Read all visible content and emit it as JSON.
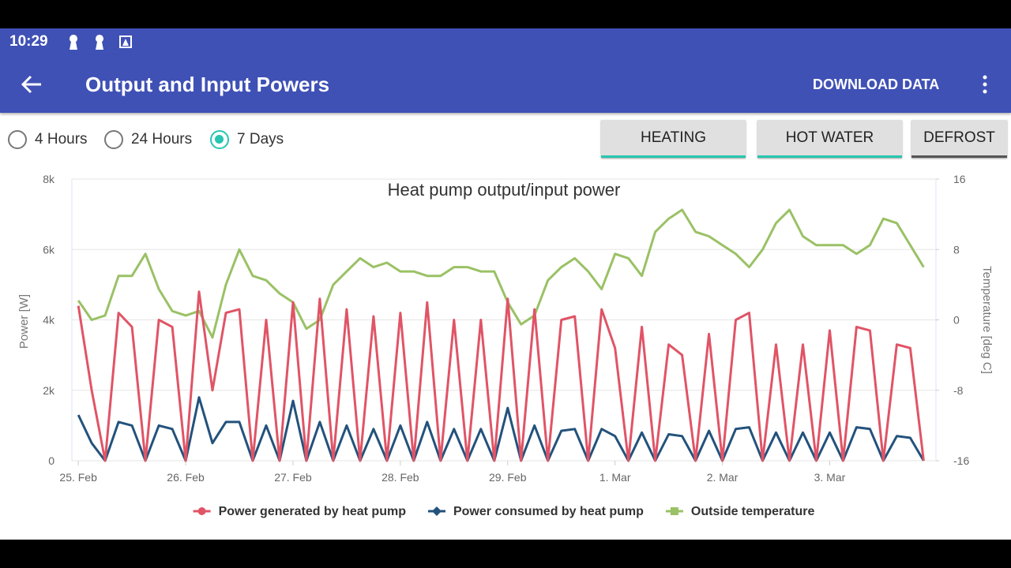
{
  "status_bar": {
    "time": "10:29"
  },
  "app_bar": {
    "title": "Output and Input Powers",
    "action": "DOWNLOAD DATA"
  },
  "range_options": [
    {
      "label": "4 Hours",
      "selected": false
    },
    {
      "label": "24 Hours",
      "selected": false
    },
    {
      "label": "7 Days",
      "selected": true
    }
  ],
  "tabs": [
    "HEATING",
    "HOT WATER",
    "DEFROST"
  ],
  "chart_data": {
    "type": "line",
    "title": "Heat pump output/input power",
    "y_label": "Power [W]",
    "y2_label": "Temperature [deg C]",
    "x": [
      0,
      0.125,
      0.25,
      0.375,
      0.5,
      0.625,
      0.75,
      0.875,
      1,
      1.125,
      1.25,
      1.375,
      1.5,
      1.625,
      1.75,
      1.875,
      2,
      2.125,
      2.25,
      2.375,
      2.5,
      2.625,
      2.75,
      2.875,
      3,
      3.125,
      3.25,
      3.375,
      3.5,
      3.625,
      3.75,
      3.875,
      4,
      4.125,
      4.25,
      4.375,
      4.5,
      4.625,
      4.75,
      4.875,
      5,
      5.125,
      5.25,
      5.375,
      5.5,
      5.625,
      5.75,
      5.875,
      6,
      6.125,
      6.25,
      6.375,
      6.5,
      6.625,
      6.75,
      6.875,
      7,
      7.125,
      7.25,
      7.375,
      7.5,
      7.625,
      7.75,
      7.875
    ],
    "xlim": [
      -0.06,
      7.99
    ],
    "xticks": [
      {
        "value": 0,
        "label": "25. Feb"
      },
      {
        "value": 1,
        "label": "26. Feb"
      },
      {
        "value": 2,
        "label": "27. Feb"
      },
      {
        "value": 3,
        "label": "28. Feb"
      },
      {
        "value": 4,
        "label": "29. Feb"
      },
      {
        "value": 5,
        "label": "1. Mar"
      },
      {
        "value": 6,
        "label": "2. Mar"
      },
      {
        "value": 7,
        "label": "3. Mar"
      }
    ],
    "ylim": [
      0,
      8000
    ],
    "yticks": [
      0,
      {
        "value": 2000,
        "label": "2k"
      },
      {
        "value": 4000,
        "label": "4k"
      },
      {
        "value": 6000,
        "label": "6k"
      },
      {
        "value": 8000,
        "label": "8k"
      }
    ],
    "y2lim": [
      -16,
      16
    ],
    "y2ticks": [
      -16,
      -8,
      0,
      8,
      16
    ],
    "grid": true,
    "legend": "bottom",
    "series": [
      {
        "name": "Power generated by heat pump",
        "color": "#e05466",
        "values": [
          4400,
          2000,
          0,
          4200,
          3800,
          0,
          4000,
          3800,
          0,
          4800,
          2000,
          4200,
          4300,
          0,
          4000,
          0,
          4500,
          0,
          4600,
          0,
          4300,
          0,
          4100,
          0,
          4200,
          0,
          4500,
          0,
          4000,
          0,
          4000,
          0,
          4600,
          0,
          4300,
          0,
          4000,
          4100,
          0,
          4300,
          3200,
          0,
          3800,
          0,
          3300,
          3000,
          0,
          3600,
          0,
          4000,
          4200,
          0,
          3300,
          0,
          3300,
          0,
          3700,
          0,
          3800,
          3700,
          0,
          3300,
          3200,
          0
        ]
      },
      {
        "name": "Power consumed by heat pump",
        "color": "#23527c",
        "values": [
          1300,
          500,
          0,
          1100,
          1000,
          0,
          1000,
          900,
          0,
          1800,
          500,
          1100,
          1100,
          0,
          1000,
          0,
          1700,
          0,
          1100,
          0,
          1000,
          0,
          900,
          0,
          1000,
          0,
          1100,
          0,
          900,
          0,
          900,
          0,
          1500,
          0,
          1000,
          0,
          850,
          900,
          0,
          900,
          700,
          0,
          800,
          0,
          750,
          700,
          0,
          850,
          0,
          900,
          950,
          0,
          800,
          0,
          800,
          0,
          800,
          0,
          950,
          900,
          0,
          700,
          650,
          0
        ]
      },
      {
        "name": "Outside temperature",
        "color": "#9ac165",
        "axis": "y2",
        "values": [
          2.2,
          0,
          0.5,
          5,
          5,
          7.5,
          3.5,
          1,
          0.5,
          1,
          -2,
          4,
          8,
          5,
          4.5,
          3,
          2,
          -1,
          0,
          4,
          5.5,
          7,
          6,
          6.5,
          5.5,
          5.5,
          5,
          5,
          6,
          6,
          5.5,
          5.5,
          2,
          -0.5,
          0.5,
          4.5,
          6,
          7,
          5.5,
          3.5,
          7.5,
          7,
          5,
          10,
          11.5,
          12.5,
          10,
          9.5,
          8.5,
          7.5,
          6,
          8,
          11,
          12.5,
          9.5,
          8.5,
          8.5,
          8.5,
          7.5,
          8.5,
          11.5,
          11,
          8.5,
          6
        ]
      }
    ]
  }
}
